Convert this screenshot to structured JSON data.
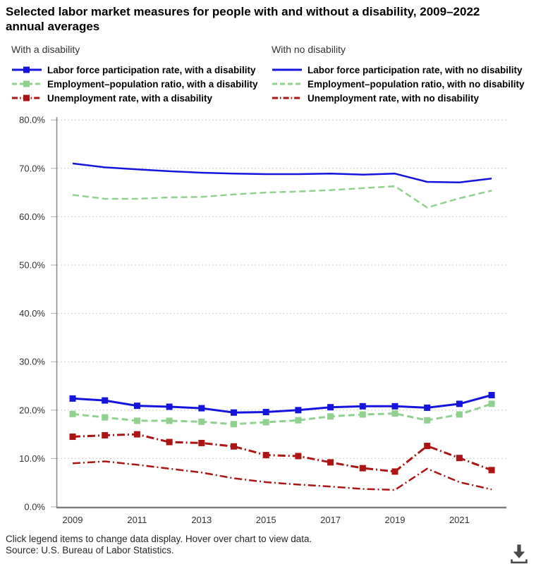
{
  "title": {
    "line1": "Selected labor market measures for people with and without a disability, 2009–2022",
    "line2": "annual averages"
  },
  "legend": {
    "groups": [
      {
        "header": "With a disability"
      },
      {
        "header": "With no disability"
      }
    ]
  },
  "chart_data": {
    "type": "line",
    "title": "Selected labor market measures for people with and without a disability, 2009–2022 annual averages",
    "xlabel": "",
    "ylabel": "",
    "ylim": [
      0,
      80
    ],
    "grid": "horizontal-dotted",
    "legend_position": "top",
    "x": [
      2009,
      2010,
      2011,
      2012,
      2013,
      2014,
      2015,
      2016,
      2017,
      2018,
      2019,
      2020,
      2021,
      2022
    ],
    "x_tick_labels": [
      "2009",
      "2011",
      "2013",
      "2015",
      "2017",
      "2019",
      "2021"
    ],
    "y_tick_labels": [
      "0.0%",
      "10.0%",
      "20.0%",
      "30.0%",
      "40.0%",
      "50.0%",
      "60.0%",
      "70.0%",
      "80.0%"
    ],
    "axis_color": "#888888",
    "grid_color": "#cccccc",
    "text_color": "#333333",
    "series": [
      {
        "key": "lfpr-with-disability",
        "name": "Labor force participation rate, with a disability",
        "color": "#1414dc",
        "style": "solid",
        "markers": true,
        "values": [
          22.4,
          22.0,
          20.9,
          20.7,
          20.4,
          19.5,
          19.6,
          20.0,
          20.6,
          20.8,
          20.8,
          20.5,
          21.3,
          23.1
        ]
      },
      {
        "key": "epr-with-disability",
        "name": "Employment–population ratio, with a disability",
        "color": "#90d190",
        "style": "dashed",
        "markers": true,
        "values": [
          19.2,
          18.5,
          17.8,
          17.8,
          17.6,
          17.1,
          17.5,
          17.9,
          18.7,
          19.1,
          19.3,
          17.9,
          19.1,
          21.3
        ]
      },
      {
        "key": "ur-with-disability",
        "name": "Unemployment rate, with a disability",
        "color": "#ad1414",
        "style": "dashdot",
        "markers": true,
        "values": [
          14.5,
          14.8,
          15.0,
          13.4,
          13.2,
          12.5,
          10.7,
          10.5,
          9.2,
          8.0,
          7.3,
          12.6,
          10.1,
          7.6
        ]
      },
      {
        "key": "lfpr-no-disability",
        "name": "Labor force participation rate, with no disability",
        "color": "#1414dc",
        "style": "solid",
        "markers": false,
        "values": [
          71.0,
          70.2,
          69.8,
          69.4,
          69.1,
          68.9,
          68.8,
          68.8,
          68.9,
          68.7,
          68.9,
          67.2,
          67.1,
          67.9
        ]
      },
      {
        "key": "epr-no-disability",
        "name": "Employment–population ratio, with no disability",
        "color": "#90d190",
        "style": "dashed",
        "markers": false,
        "values": [
          64.5,
          63.7,
          63.7,
          64.0,
          64.1,
          64.6,
          65.0,
          65.2,
          65.5,
          65.9,
          66.3,
          61.9,
          63.8,
          65.4
        ]
      },
      {
        "key": "ur-no-disability",
        "name": "Unemployment rate, with no disability",
        "color": "#ad1414",
        "style": "dashdot",
        "markers": false,
        "values": [
          9.0,
          9.4,
          8.7,
          7.9,
          7.1,
          5.9,
          5.1,
          4.6,
          4.2,
          3.7,
          3.5,
          7.9,
          5.1,
          3.6
        ]
      }
    ]
  },
  "footer": {
    "instructions": "Click legend items to change data display. Hover over chart to view data.",
    "source": "Source: U.S. Bureau of Labor Statistics."
  }
}
